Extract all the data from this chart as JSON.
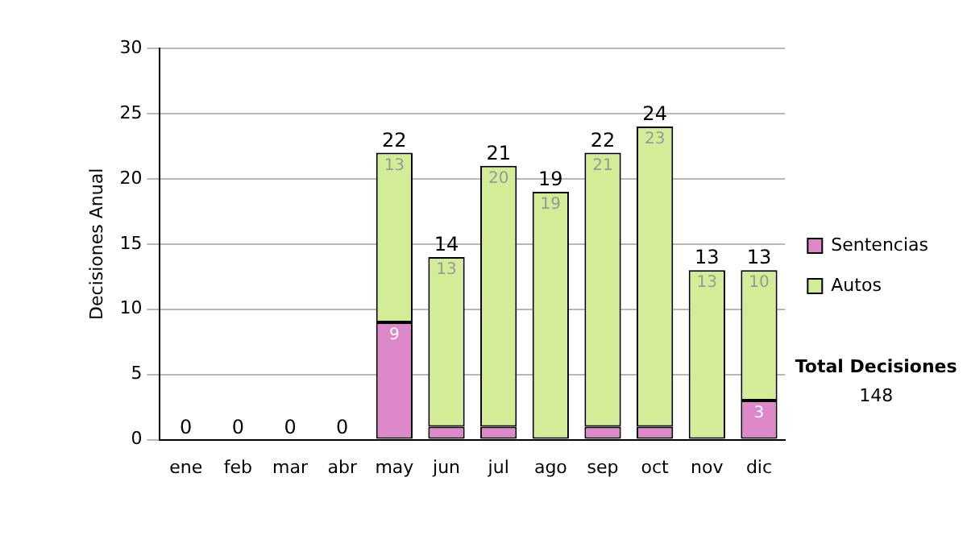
{
  "chart_data": {
    "type": "bar",
    "stacked": true,
    "ylabel": "Decisiones Anual",
    "categories": [
      "ene",
      "feb",
      "mar",
      "abr",
      "may",
      "jun",
      "jul",
      "ago",
      "sep",
      "oct",
      "nov",
      "dic"
    ],
    "series": [
      {
        "name": "Sentencias",
        "color": "#dd88c8",
        "values": [
          0,
          0,
          0,
          0,
          9,
          1,
          1,
          0,
          1,
          1,
          0,
          3
        ],
        "value_labels": [
          null,
          null,
          null,
          null,
          "9",
          null,
          null,
          null,
          null,
          null,
          null,
          "3"
        ]
      },
      {
        "name": "Autos",
        "color": "#d4ec98",
        "values": [
          0,
          0,
          0,
          0,
          13,
          13,
          20,
          19,
          21,
          23,
          13,
          10
        ],
        "value_labels": [
          null,
          null,
          null,
          null,
          "13",
          "13",
          "20",
          "19",
          "21",
          "23",
          "13",
          "10"
        ]
      }
    ],
    "totals": [
      "0",
      "0",
      "0",
      "0",
      "22",
      "14",
      "21",
      "19",
      "22",
      "24",
      "13",
      "13"
    ],
    "ylim": [
      0,
      30
    ],
    "yticks": [
      0,
      5,
      10,
      15,
      20,
      25,
      30
    ],
    "grid": "y",
    "legend": "right",
    "annotations": [
      "Total Decisiones",
      "148"
    ]
  }
}
